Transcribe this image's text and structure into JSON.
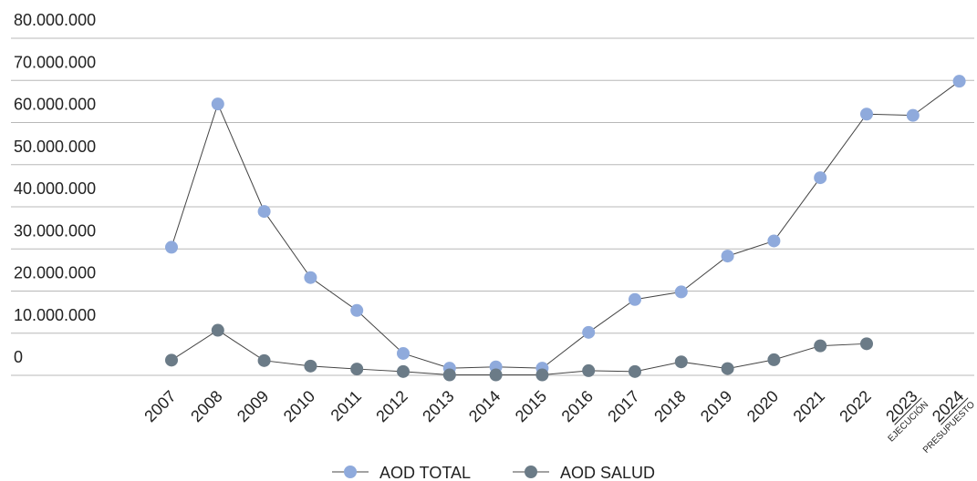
{
  "chart_data": {
    "type": "line",
    "categories": [
      "2007",
      "2008",
      "2009",
      "2010",
      "2011",
      "2012",
      "2013",
      "2014",
      "2015",
      "2016",
      "2017",
      "2018",
      "2019",
      "2020",
      "2021",
      "2022",
      "2023",
      "2024"
    ],
    "category_sublabels": {
      "2023": "EJECUCIÓN",
      "2024": "PRESUPUESTO"
    },
    "ytick_labels": [
      "0",
      "10.000.000",
      "20.000.000",
      "30.000.000",
      "40.000.000",
      "50.000.000",
      "60.000.000",
      "70.000.000",
      "80.000.000"
    ],
    "ylim": [
      0,
      80000000
    ],
    "grid": true,
    "legend_position": "bottom",
    "series": [
      {
        "name": "AOD TOTAL",
        "color": "#8faadc",
        "values": [
          30400000,
          64400000,
          38900000,
          23200000,
          15400000,
          5200000,
          1700000,
          2000000,
          1700000,
          10200000,
          18000000,
          19800000,
          28300000,
          31900000,
          46900000,
          62000000,
          61700000,
          69800000
        ]
      },
      {
        "name": "AOD SALUD",
        "color": "#6b7b87",
        "values": [
          3600000,
          10700000,
          3500000,
          2200000,
          1500000,
          900000,
          100000,
          100000,
          100000,
          1100000,
          900000,
          3200000,
          1600000,
          3700000,
          7000000,
          7500000,
          null,
          null
        ]
      }
    ]
  }
}
